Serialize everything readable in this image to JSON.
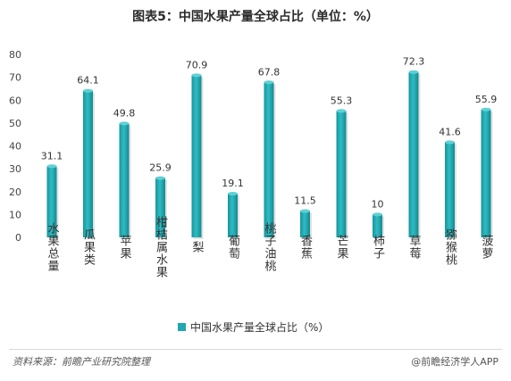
{
  "chart_data": {
    "type": "bar",
    "title": "图表5：中国水果产量全球占比（单位：%）",
    "categories": [
      "水果总量",
      "瓜果类",
      "苹果",
      "柑桔属水果",
      "梨",
      "葡萄",
      "桃子油桃",
      "香蕉",
      "芒果",
      "柿子",
      "草莓",
      "猕猴桃",
      "菠萝"
    ],
    "values": [
      31.1,
      64.1,
      49.8,
      25.9,
      70.9,
      19.1,
      67.8,
      11.5,
      55.3,
      10,
      72.3,
      41.6,
      55.9
    ],
    "value_labels": [
      "31.1",
      "64.1",
      "49.8",
      "25.9",
      "70.9",
      "19.1",
      "67.8",
      "11.5",
      "55.3",
      "10",
      "72.3",
      "41.6",
      "55.9"
    ],
    "yticks": [
      "0",
      "10",
      "20",
      "30",
      "40",
      "50",
      "60",
      "70",
      "80"
    ],
    "ylim": [
      0,
      80
    ],
    "grid": false,
    "legend": {
      "label": "中国水果产量全球占比（%）",
      "position": "bottom"
    },
    "color": "#1fa8b0"
  },
  "footer": {
    "source": "资料来源：前瞻产业研究院整理",
    "brand": "@前瞻经济学人APP"
  }
}
